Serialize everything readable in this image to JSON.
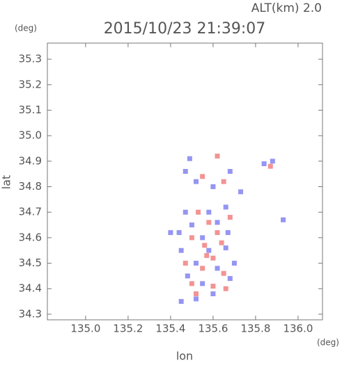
{
  "chart_data": {
    "type": "scatter",
    "title": "2015/10/23 21:39:07",
    "subtitle": "ALT(km) 2.0",
    "y_unit": "(deg)",
    "x_unit": "(deg)",
    "xlabel": "lon",
    "ylabel": "lat",
    "xlim": [
      134.82,
      136.115
    ],
    "ylim": [
      34.278,
      35.363
    ],
    "xticks": [
      {
        "value": 135,
        "label": "135.0"
      },
      135.2,
      135.4,
      135.6,
      135.8,
      {
        "value": 136,
        "label": "136.0"
      }
    ],
    "yticks": [
      34.3,
      34.4,
      34.5,
      34.6,
      34.7,
      34.8,
      34.9,
      {
        "value": 35,
        "label": "35.0"
      },
      35.1,
      35.2,
      35.3
    ],
    "series": [
      {
        "color": "#7b7bf0",
        "x": [
          135.49,
          135.47,
          135.52,
          135.6,
          135.68,
          135.73,
          135.66,
          135.47,
          135.44,
          135.5,
          135.55,
          135.62,
          135.67,
          135.45,
          135.58,
          135.66,
          135.52,
          135.62,
          135.7,
          135.48,
          135.55,
          135.68,
          135.6,
          135.45,
          135.52,
          135.93,
          135.84,
          135.88,
          135.4,
          135.58
        ],
        "y": [
          34.91,
          34.86,
          34.82,
          34.8,
          34.86,
          34.78,
          34.72,
          34.7,
          34.62,
          34.65,
          34.6,
          34.66,
          34.62,
          34.55,
          34.55,
          34.56,
          34.5,
          34.48,
          34.5,
          34.45,
          34.42,
          34.44,
          34.38,
          34.35,
          34.36,
          34.67,
          34.89,
          34.9,
          34.62,
          34.7
        ]
      },
      {
        "color": "#f07878",
        "x": [
          135.62,
          135.55,
          135.65,
          135.87,
          135.53,
          135.58,
          135.62,
          135.5,
          135.56,
          135.64,
          135.6,
          135.55,
          135.65,
          135.5,
          135.6,
          135.66,
          135.52,
          135.57,
          135.47,
          135.68
        ],
        "y": [
          34.92,
          34.84,
          34.82,
          34.88,
          34.7,
          34.66,
          34.62,
          34.6,
          34.57,
          34.58,
          34.52,
          34.48,
          34.46,
          34.42,
          34.41,
          34.4,
          34.38,
          34.53,
          34.5,
          34.68
        ]
      }
    ]
  }
}
